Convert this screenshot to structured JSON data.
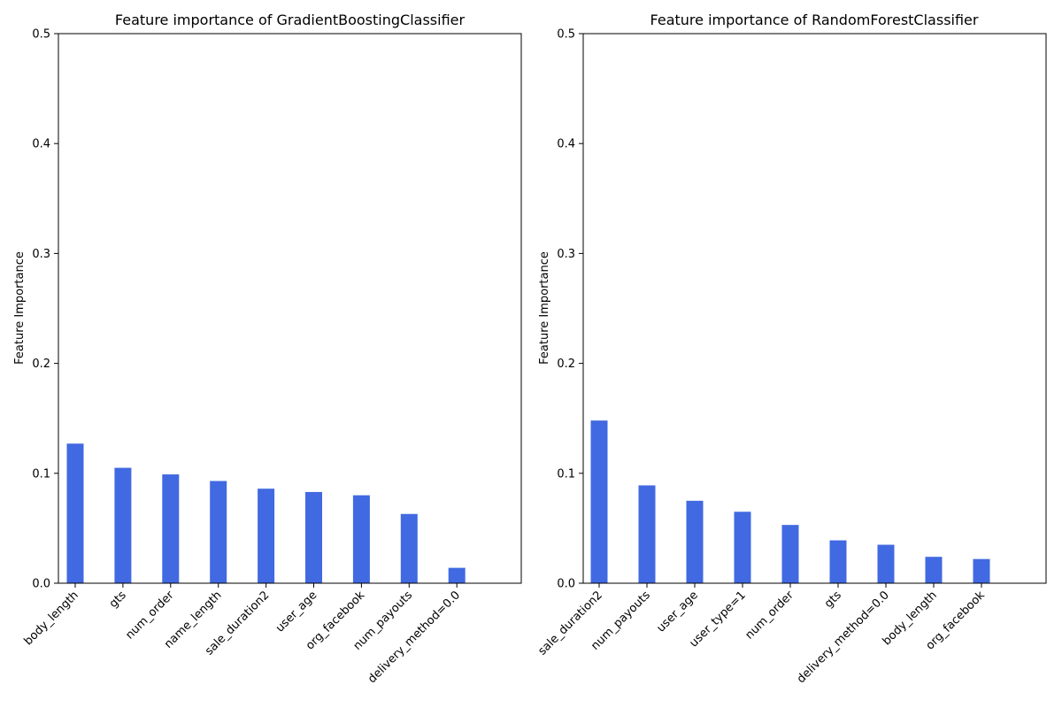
{
  "figure": {
    "background": "#ffffff"
  },
  "chart_data": [
    {
      "type": "bar",
      "title": "Feature importance of GradientBoostingClassifier",
      "xlabel": "",
      "ylabel": "Feature Importance",
      "ylim": [
        0,
        0.5
      ],
      "yticks": [
        0.0,
        0.1,
        0.2,
        0.3,
        0.4,
        0.5
      ],
      "ytick_labels": [
        "0.0",
        "0.1",
        "0.2",
        "0.3",
        "0.4",
        "0.5"
      ],
      "categories": [
        "body_length",
        "gts",
        "num_order",
        "name_length",
        "sale_duration2",
        "user_age",
        "org_facebook",
        "num_payouts",
        "delivery_method=0.0"
      ],
      "values": [
        0.127,
        0.105,
        0.099,
        0.093,
        0.086,
        0.083,
        0.08,
        0.063,
        0.014
      ],
      "bar_color": "#4169e1",
      "grid": false
    },
    {
      "type": "bar",
      "title": "Feature importance of RandomForestClassifier",
      "xlabel": "",
      "ylabel": "Feature Importance",
      "ylim": [
        0,
        0.5
      ],
      "yticks": [
        0.0,
        0.1,
        0.2,
        0.3,
        0.4,
        0.5
      ],
      "ytick_labels": [
        "0.0",
        "0.1",
        "0.2",
        "0.3",
        "0.4",
        "0.5"
      ],
      "categories": [
        "sale_duration2",
        "num_payouts",
        "user_age",
        "user_type=1",
        "num_order",
        "gts",
        "delivery_method=0.0",
        "body_length",
        "org_facebook"
      ],
      "values": [
        0.148,
        0.089,
        0.075,
        0.065,
        0.053,
        0.039,
        0.035,
        0.024,
        0.022
      ],
      "bar_color": "#4169e1",
      "grid": false
    }
  ]
}
